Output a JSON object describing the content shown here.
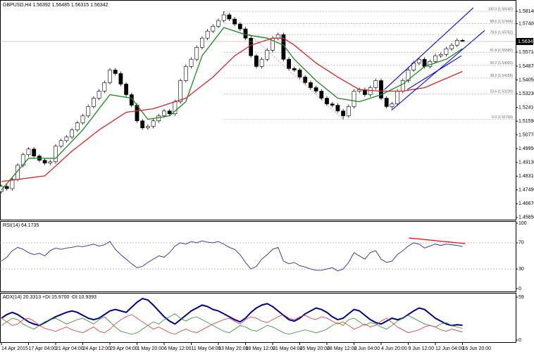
{
  "chart_data": [
    {
      "type": "candlestick",
      "title": "GBPUSD,H4  1.56392 1.56485 1.56315 1.56342",
      "price_label": "1.56342",
      "categories": [
        "14 Apr 2015",
        null,
        null,
        null,
        null,
        "17 Apr 04:00",
        null,
        null,
        null,
        null,
        "21 Apr 04:00",
        null,
        null,
        null,
        null,
        "24 Apr 12:00",
        null,
        null,
        null,
        null,
        "29 Apr 04:00",
        null,
        null,
        null,
        null,
        "1 May 20:00",
        null,
        null,
        null,
        null,
        "6 May 12:00",
        null,
        null,
        null,
        null,
        "11 May 04:00",
        null,
        null,
        null,
        null,
        "13 May 20:00",
        null,
        null,
        null,
        null,
        "18 May 12:00",
        null,
        null,
        null,
        null,
        "21 May 04:00",
        null,
        null,
        null,
        null,
        "25 May 20:00",
        null,
        null,
        null,
        null,
        "28 May 12:00",
        null,
        null,
        null,
        null,
        "2 Jun 04:00",
        null,
        null,
        null,
        null,
        "4 Jun 20:00",
        null,
        null,
        null,
        null,
        "9 Jun 12:00",
        null,
        null,
        null,
        null,
        "12 Jun 04:00",
        null,
        null,
        null,
        null,
        "16 Jun 20:00"
      ],
      "open": [
        1.474,
        1.477,
        1.4757,
        1.4812,
        1.4896,
        1.4959,
        1.4993,
        1.4951,
        1.4926,
        1.4909,
        1.4917,
        1.501,
        1.5043,
        1.5064,
        1.5107,
        1.5149,
        1.5191,
        1.5246,
        1.5296,
        1.5338,
        1.5389,
        1.5464,
        1.5443,
        1.538,
        1.5317,
        1.5254,
        1.5161,
        1.5119,
        1.5128,
        1.5161,
        1.5191,
        1.522,
        1.5203,
        1.5275,
        1.5401,
        1.5485,
        1.5528,
        1.5599,
        1.5654,
        1.5696,
        1.5725,
        1.5759,
        1.5793,
        1.5768,
        1.5738,
        1.5709,
        1.5654,
        1.5549,
        1.5485,
        1.5528,
        1.5582,
        1.5654,
        1.5675,
        1.5528,
        1.5473,
        1.5464,
        1.5422,
        1.5389,
        1.5359,
        1.5338,
        1.5296,
        1.5262,
        1.5254,
        1.522,
        1.5191,
        1.5246,
        1.5338,
        1.5347,
        1.5317,
        1.5359,
        1.5401,
        1.5296,
        1.5246,
        1.5262,
        1.5338,
        1.5401,
        1.5464,
        1.5506,
        1.5528,
        1.5485,
        1.5515,
        1.5549,
        1.5557,
        1.5591,
        1.5612,
        1.5641
      ],
      "high": [
        1.4782,
        1.4782,
        1.4824,
        1.4908,
        1.4971,
        1.5005,
        1.5005,
        1.4963,
        1.4938,
        1.4929,
        1.5022,
        1.5055,
        1.5076,
        1.5119,
        1.5161,
        1.5203,
        1.5258,
        1.5308,
        1.535,
        1.5401,
        1.5476,
        1.5476,
        1.5455,
        1.5392,
        1.5329,
        1.5266,
        1.5173,
        1.514,
        1.5173,
        1.5203,
        1.5232,
        1.5232,
        1.5287,
        1.5413,
        1.5497,
        1.554,
        1.5611,
        1.5666,
        1.5708,
        1.5737,
        1.5771,
        1.5814,
        1.5805,
        1.578,
        1.575,
        1.5721,
        1.5666,
        1.5561,
        1.554,
        1.5594,
        1.5666,
        1.5687,
        1.5687,
        1.554,
        1.5485,
        1.5476,
        1.5434,
        1.5401,
        1.5371,
        1.535,
        1.5308,
        1.5274,
        1.5266,
        1.5232,
        1.5258,
        1.535,
        1.5359,
        1.5359,
        1.5371,
        1.5413,
        1.5413,
        1.5308,
        1.5274,
        1.535,
        1.5413,
        1.5476,
        1.5518,
        1.554,
        1.554,
        1.5527,
        1.5561,
        1.5569,
        1.5603,
        1.5624,
        1.5653,
        1.5649
      ],
      "low": [
        1.4728,
        1.4745,
        1.4745,
        1.48,
        1.4884,
        1.4947,
        1.4939,
        1.4914,
        1.4897,
        1.4897,
        1.4905,
        1.4998,
        1.5031,
        1.5052,
        1.5095,
        1.5137,
        1.5179,
        1.5234,
        1.5284,
        1.5326,
        1.5377,
        1.5431,
        1.5368,
        1.5305,
        1.5242,
        1.5149,
        1.5107,
        1.5107,
        1.5116,
        1.5149,
        1.5179,
        1.5191,
        1.5191,
        1.5263,
        1.5389,
        1.5473,
        1.5516,
        1.5587,
        1.5642,
        1.5684,
        1.5713,
        1.5747,
        1.5756,
        1.5726,
        1.5697,
        1.5642,
        1.5537,
        1.5473,
        1.5473,
        1.5516,
        1.557,
        1.5642,
        1.5516,
        1.5461,
        1.5452,
        1.541,
        1.5377,
        1.5347,
        1.5326,
        1.5284,
        1.525,
        1.5242,
        1.5208,
        1.517,
        1.5179,
        1.5234,
        1.5326,
        1.5305,
        1.5305,
        1.5347,
        1.5284,
        1.5234,
        1.5234,
        1.525,
        1.5326,
        1.5389,
        1.5452,
        1.5494,
        1.5473,
        1.5473,
        1.5503,
        1.5537,
        1.5545,
        1.5579,
        1.56,
        1.5632
      ],
      "close": [
        1.477,
        1.4757,
        1.4812,
        1.4896,
        1.4959,
        1.4993,
        1.4951,
        1.4926,
        1.4909,
        1.4917,
        1.501,
        1.5043,
        1.5064,
        1.5107,
        1.5149,
        1.5191,
        1.5246,
        1.5296,
        1.5338,
        1.5389,
        1.5464,
        1.5443,
        1.538,
        1.5317,
        1.5254,
        1.5161,
        1.5119,
        1.5128,
        1.5161,
        1.5191,
        1.522,
        1.5203,
        1.5275,
        1.5401,
        1.5485,
        1.5528,
        1.5599,
        1.5654,
        1.5696,
        1.5725,
        1.5759,
        1.5793,
        1.5768,
        1.5738,
        1.5709,
        1.5654,
        1.5549,
        1.5485,
        1.5528,
        1.5582,
        1.5654,
        1.5675,
        1.5528,
        1.5473,
        1.5464,
        1.5422,
        1.5389,
        1.5359,
        1.5338,
        1.5296,
        1.5262,
        1.5254,
        1.522,
        1.5191,
        1.5246,
        1.5338,
        1.5347,
        1.5317,
        1.5359,
        1.5401,
        1.5296,
        1.5246,
        1.5262,
        1.5338,
        1.5401,
        1.5464,
        1.5506,
        1.5528,
        1.5485,
        1.5515,
        1.5549,
        1.5557,
        1.5591,
        1.5612,
        1.5641,
        1.5634
      ],
      "ylim": [
        1.4572,
        1.5873
      ],
      "yticks": [
        {
          "value": 1.5814,
          "label": "1.58140"
        },
        {
          "value": 1.574,
          "label": "1.57400"
        },
        {
          "value": 1.5571,
          "label": "1.55710"
        },
        {
          "value": 1.5487,
          "label": "1.54870"
        },
        {
          "value": 1.5405,
          "label": "1.54050"
        },
        {
          "value": 1.5323,
          "label": "1.53230"
        },
        {
          "value": 1.5241,
          "label": "1.52410"
        },
        {
          "value": 1.5159,
          "label": "1.51590"
        },
        {
          "value": 1.5077,
          "label": "1.50770"
        },
        {
          "value": 1.4995,
          "label": "1.49950"
        },
        {
          "value": 1.4913,
          "label": "1.49130"
        },
        {
          "value": 1.4831,
          "label": "1.48310"
        },
        {
          "value": 1.4749,
          "label": "1.47490"
        },
        {
          "value": 1.4667,
          "label": "1.46670"
        },
        {
          "value": 1.4585,
          "label": "1.45850"
        }
      ],
      "overlays": [
        {
          "color": "#1a8a1a",
          "x": [
            0,
            5,
            10,
            15,
            20,
            24,
            27,
            31,
            34,
            37,
            41,
            45,
            49,
            52,
            54,
            58,
            62,
            66,
            70,
            74,
            78,
            82,
            85
          ],
          "values": [
            1.4749,
            1.4938,
            1.4938,
            1.5107,
            1.5317,
            1.5296,
            1.517,
            1.5191,
            1.5275,
            1.5549,
            1.5717,
            1.5675,
            1.5654,
            1.5612,
            1.5528,
            1.5401,
            1.5296,
            1.5275,
            1.5317,
            1.538,
            1.5485,
            1.5528,
            1.5591
          ]
        },
        {
          "color": "#e02020",
          "x": [
            0,
            8,
            13,
            18,
            23,
            28,
            34,
            39,
            43,
            46,
            50,
            52,
            54,
            58,
            62,
            66,
            70,
            74,
            78,
            82,
            85
          ],
          "values": [
            1.4799,
            1.4833,
            1.498,
            1.5107,
            1.5212,
            1.5233,
            1.5296,
            1.5422,
            1.5549,
            1.5612,
            1.5654,
            1.5654,
            1.5612,
            1.5506,
            1.5422,
            1.5347,
            1.5338,
            1.5338,
            1.5359,
            1.5414,
            1.5456
          ]
        }
      ],
      "trend_lines": [
        {
          "color": "#0000ff",
          "x": [
            70.6,
            87.0
          ],
          "values": [
            1.5347,
            1.5835
          ]
        },
        {
          "color": "#0000ff",
          "x": [
            71.9,
            89.1
          ],
          "values": [
            1.5224,
            1.57
          ]
        },
        {
          "color": "#0000ff",
          "x": [
            74.8,
            84.8
          ],
          "values": [
            1.5347,
            1.5549
          ]
        }
      ],
      "fibo": {
        "color": "#9a9a9a",
        "start": 41,
        "levels": [
          {
            "value": 1.5814,
            "label": "100.0 (1.58140)"
          },
          {
            "value": 1.5741,
            "label": "88.6 (1.57406)"
          },
          {
            "value": 1.5676,
            "label": "78.6 (1.56762)"
          },
          {
            "value": 1.5568,
            "label": "61.8 (1.55680)"
          },
          {
            "value": 1.5492,
            "label": "50.0 (1.54920)"
          },
          {
            "value": 1.5416,
            "label": "38.2 (1.54159)"
          },
          {
            "value": 1.5322,
            "label": "23.6 (1.53220)"
          },
          {
            "value": 1.517,
            "label": "0.0 (1.51700)"
          }
        ]
      }
    },
    {
      "type": "line",
      "title": "RSI(14) 64.1735",
      "series": [
        {
          "color": "#2a2aa0",
          "values": [
            42,
            48,
            58,
            63,
            60,
            55,
            52,
            54,
            50,
            58,
            62,
            60,
            62,
            63,
            65,
            64,
            66,
            68,
            65,
            67,
            72,
            60,
            52,
            45,
            38,
            32,
            34,
            40,
            45,
            50,
            48,
            55,
            65,
            70,
            68,
            72,
            70,
            73,
            71,
            70,
            72,
            68,
            63,
            60,
            52,
            40,
            30,
            34,
            45,
            52,
            60,
            63,
            42,
            38,
            40,
            35,
            33,
            30,
            28,
            28,
            30,
            32,
            27,
            30,
            40,
            55,
            50,
            45,
            55,
            58,
            45,
            40,
            42,
            52,
            58,
            65,
            70,
            68,
            62,
            65,
            68,
            66,
            68,
            67,
            66,
            64.1735
          ]
        }
      ],
      "ylim": [
        0,
        100
      ],
      "yticks": [
        100,
        70,
        30,
        0
      ],
      "levels": [
        70,
        30
      ],
      "trend_lines": [
        {
          "color": "#ff0000",
          "x": [
            75.1,
            85.5
          ],
          "values": [
            77.4,
            68.8
          ]
        }
      ]
    },
    {
      "type": "line",
      "title": "ADX(14) 20.3313 +DI:15.9700 -DI:10.9393",
      "series": [
        {
          "color": "#00008b",
          "width": 2,
          "values": [
            30,
            35,
            38,
            35,
            30,
            25,
            22,
            20,
            24,
            28,
            32,
            35,
            38,
            40,
            38,
            34,
            30,
            28,
            30,
            35,
            40,
            42,
            40,
            38,
            45,
            52,
            57,
            55,
            48,
            40,
            32,
            26,
            22,
            28,
            34,
            40,
            44,
            48,
            46,
            42,
            40,
            36,
            32,
            28,
            25,
            30,
            38,
            44,
            48,
            50,
            46,
            40,
            34,
            28,
            26,
            30,
            36,
            40,
            44,
            42,
            38,
            32,
            28,
            30,
            36,
            42,
            40,
            34,
            28,
            24,
            22,
            26,
            30,
            28,
            30,
            35,
            40,
            44,
            42,
            36,
            30,
            26,
            22,
            20,
            21,
            20.3313
          ]
        },
        {
          "color": "#2e8b2e",
          "width": 0.8,
          "values": [
            20,
            25,
            30,
            28,
            22,
            18,
            15,
            20,
            25,
            28,
            30,
            26,
            22,
            25,
            28,
            30,
            26,
            22,
            28,
            32,
            25,
            18,
            12,
            10,
            8,
            10,
            15,
            20,
            25,
            22,
            28,
            32,
            36,
            30,
            26,
            30,
            32,
            28,
            24,
            20,
            16,
            12,
            10,
            15,
            20,
            18,
            14,
            12,
            16,
            20,
            18,
            14,
            10,
            8,
            10,
            12,
            14,
            12,
            10,
            12,
            15,
            20,
            24,
            20,
            28,
            30,
            25,
            20,
            24,
            22,
            18,
            15,
            20,
            26,
            30,
            34,
            30,
            26,
            22,
            20,
            18,
            22,
            24,
            20,
            18,
            15.97
          ]
        },
        {
          "color": "#e03030",
          "width": 0.8,
          "values": [
            30,
            25,
            20,
            22,
            28,
            30,
            26,
            20,
            16,
            14,
            12,
            15,
            18,
            14,
            12,
            10,
            14,
            18,
            12,
            10,
            15,
            22,
            28,
            32,
            35,
            30,
            25,
            20,
            15,
            18,
            14,
            10,
            8,
            12,
            15,
            12,
            10,
            14,
            18,
            22,
            25,
            28,
            30,
            26,
            22,
            28,
            32,
            30,
            26,
            24,
            28,
            32,
            35,
            30,
            28,
            32,
            34,
            30,
            28,
            32,
            30,
            26,
            22,
            25,
            20,
            15,
            18,
            22,
            18,
            20,
            26,
            30,
            24,
            18,
            14,
            10,
            12,
            14,
            18,
            20,
            18,
            14,
            12,
            15,
            13,
            10.94
          ]
        }
      ],
      "ylim": [
        0,
        59
      ],
      "yticks": [
        59,
        0
      ]
    }
  ]
}
